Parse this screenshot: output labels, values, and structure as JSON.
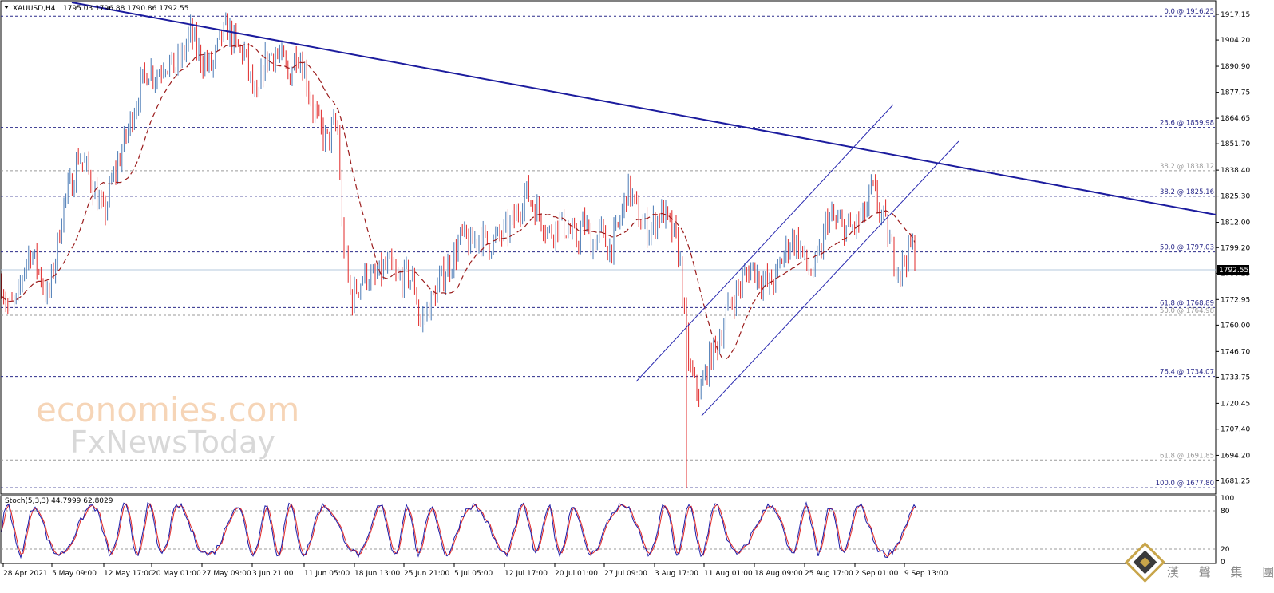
{
  "window": {
    "symbol_label": "XAUUSD,H4",
    "ohlc_label": "1795.03 1796.88 1790.86 1792.55",
    "current_price": "1792.55",
    "dropdown_icon": "triangle-down-icon"
  },
  "watermark": {
    "line1": "economies.com",
    "line2": "FxNewsToday"
  },
  "stamp": {
    "chars": "漢 聲 集 團"
  },
  "colors": {
    "bull": "#4a7ab5",
    "bear": "#e02828",
    "ma": "#9b1c1c",
    "trend": "#1c1c9e",
    "channel": "#2a2ab0",
    "fib_line": "#2b2b8a",
    "fib_grey": "#9a9a9a",
    "stoch_main": "#1c1ca8",
    "stoch_signal": "#e02828"
  },
  "chart_data": {
    "type": "candlestick",
    "symbol": "XAUUSD",
    "timeframe": "H4",
    "price_axis": {
      "range": [
        1674.6,
        1923.2
      ],
      "ticks": [
        "1917.15",
        "1904.20",
        "1890.90",
        "1877.75",
        "1864.65",
        "1851.70",
        "1838.40",
        "1825.30",
        "1812.00",
        "1799.20",
        "1786.25",
        "1772.95",
        "1760.00",
        "1746.70",
        "1733.75",
        "1720.45",
        "1707.40",
        "1694.20",
        "1681.25"
      ]
    },
    "time_axis": {
      "labels": [
        "28 Apr 2021",
        "5 May 09:00",
        "12 May 17:00",
        "20 May 01:00",
        "27 May 09:00",
        "3 Jun 21:00",
        "11 Jun 05:00",
        "18 Jun 13:00",
        "25 Jun 21:00",
        "5 Jul 05:00",
        "12 Jul 17:00",
        "20 Jul 01:00",
        "27 Jul 09:00",
        "3 Aug 17:00",
        "11 Aug 01:00",
        "18 Aug 09:00",
        "25 Aug 17:00",
        "2 Sep 01:00",
        "9 Sep 13:00"
      ]
    },
    "fibonacci": [
      {
        "label": "0.0 @ 1916.25",
        "price": 1916.25,
        "style": "main"
      },
      {
        "label": "23.6 @ 1859.98",
        "price": 1859.98,
        "style": "main"
      },
      {
        "label": "38.2 @ 1838.12",
        "price": 1838.12,
        "style": "grey"
      },
      {
        "label": "38.2 @ 1825.16",
        "price": 1825.16,
        "style": "main"
      },
      {
        "label": "50.0 @ 1797.03",
        "price": 1797.03,
        "style": "main"
      },
      {
        "label": "61.8 @ 1768.89",
        "price": 1768.89,
        "style": "main"
      },
      {
        "label": "50.0 @ 1764.98",
        "price": 1764.98,
        "style": "grey"
      },
      {
        "label": "76.4 @ 1734.07",
        "price": 1734.07,
        "style": "main"
      },
      {
        "label": "61.8 @ 1691.85",
        "price": 1691.85,
        "style": "grey"
      },
      {
        "label": "100.0 @ 1677.80",
        "price": 1677.8,
        "style": "main"
      }
    ],
    "price_path": [
      [
        0,
        1785
      ],
      [
        10,
        1768
      ],
      [
        22,
        1772
      ],
      [
        30,
        1790
      ],
      [
        38,
        1798
      ],
      [
        50,
        1786
      ],
      [
        60,
        1773
      ],
      [
        70,
        1795
      ],
      [
        80,
        1822
      ],
      [
        90,
        1832
      ],
      [
        98,
        1846
      ],
      [
        110,
        1838
      ],
      [
        120,
        1826
      ],
      [
        130,
        1815
      ],
      [
        140,
        1832
      ],
      [
        150,
        1845
      ],
      [
        160,
        1858
      ],
      [
        168,
        1870
      ],
      [
        176,
        1880
      ],
      [
        186,
        1890
      ],
      [
        196,
        1886
      ],
      [
        206,
        1894
      ],
      [
        218,
        1890
      ],
      [
        228,
        1895
      ],
      [
        238,
        1908
      ],
      [
        248,
        1898
      ],
      [
        256,
        1893
      ],
      [
        266,
        1890
      ],
      [
        276,
        1905
      ],
      [
        286,
        1910
      ],
      [
        296,
        1900
      ],
      [
        306,
        1898
      ],
      [
        316,
        1880
      ],
      [
        322,
        1870
      ],
      [
        330,
        1892
      ],
      [
        342,
        1898
      ],
      [
        352,
        1895
      ],
      [
        362,
        1885
      ],
      [
        372,
        1900
      ],
      [
        382,
        1888
      ],
      [
        392,
        1870
      ],
      [
        402,
        1858
      ],
      [
        410,
        1853
      ],
      [
        418,
        1860
      ],
      [
        424,
        1858
      ],
      [
        428,
        1810
      ],
      [
        434,
        1790
      ],
      [
        440,
        1772
      ],
      [
        448,
        1780
      ],
      [
        458,
        1786
      ],
      [
        468,
        1782
      ],
      [
        478,
        1787
      ],
      [
        488,
        1790
      ],
      [
        498,
        1782
      ],
      [
        510,
        1786
      ],
      [
        520,
        1780
      ],
      [
        526,
        1760
      ],
      [
        534,
        1767
      ],
      [
        544,
        1775
      ],
      [
        556,
        1786
      ],
      [
        568,
        1794
      ],
      [
        578,
        1805
      ],
      [
        590,
        1800
      ],
      [
        600,
        1806
      ],
      [
        612,
        1801
      ],
      [
        624,
        1804
      ],
      [
        636,
        1808
      ],
      [
        648,
        1816
      ],
      [
        658,
        1828
      ],
      [
        666,
        1822
      ],
      [
        676,
        1816
      ],
      [
        688,
        1806
      ],
      [
        700,
        1812
      ],
      [
        712,
        1808
      ],
      [
        722,
        1802
      ],
      [
        732,
        1812
      ],
      [
        742,
        1800
      ],
      [
        752,
        1808
      ],
      [
        762,
        1798
      ],
      [
        772,
        1806
      ],
      [
        780,
        1818
      ],
      [
        786,
        1830
      ],
      [
        794,
        1822
      ],
      [
        802,
        1812
      ],
      [
        812,
        1808
      ],
      [
        822,
        1813
      ],
      [
        830,
        1818
      ],
      [
        838,
        1810
      ],
      [
        846,
        1804
      ],
      [
        852,
        1792
      ],
      [
        856,
        1770
      ],
      [
        860,
        1752
      ],
      [
        864,
        1738
      ],
      [
        870,
        1729
      ],
      [
        878,
        1726
      ],
      [
        884,
        1736
      ],
      [
        890,
        1744
      ],
      [
        898,
        1750
      ],
      [
        906,
        1760
      ],
      [
        914,
        1770
      ],
      [
        922,
        1776
      ],
      [
        932,
        1784
      ],
      [
        942,
        1790
      ],
      [
        952,
        1784
      ],
      [
        962,
        1780
      ],
      [
        972,
        1784
      ],
      [
        982,
        1796
      ],
      [
        992,
        1804
      ],
      [
        1002,
        1800
      ],
      [
        1010,
        1790
      ],
      [
        1018,
        1786
      ],
      [
        1028,
        1796
      ],
      [
        1036,
        1815
      ],
      [
        1046,
        1812
      ],
      [
        1056,
        1810
      ],
      [
        1066,
        1808
      ],
      [
        1076,
        1812
      ],
      [
        1086,
        1818
      ],
      [
        1092,
        1830
      ],
      [
        1100,
        1820
      ],
      [
        1108,
        1812
      ],
      [
        1114,
        1802
      ],
      [
        1120,
        1794
      ],
      [
        1128,
        1788
      ],
      [
        1136,
        1796
      ],
      [
        1142,
        1800
      ],
      [
        1148,
        1793
      ]
    ],
    "trendline": {
      "from": [
        "28 Apr 2021",
        1930.6
      ],
      "to": [
        "9 Sep 13:00",
        1831.5
      ]
    },
    "channel": {
      "upper": [
        [
          1718.4,
          1878.2
        ]
      ],
      "lower": [
        [
          1719.5,
          1860.3
        ]
      ]
    },
    "stochastic": {
      "label": "Stoch(5,3,3) 44.7999 62.8029",
      "main": 44.7999,
      "signal": 62.8029,
      "range": [
        0,
        100
      ],
      "levels": [
        80,
        20
      ],
      "axis_labels": [
        "100",
        "80",
        "20",
        "0"
      ]
    }
  }
}
